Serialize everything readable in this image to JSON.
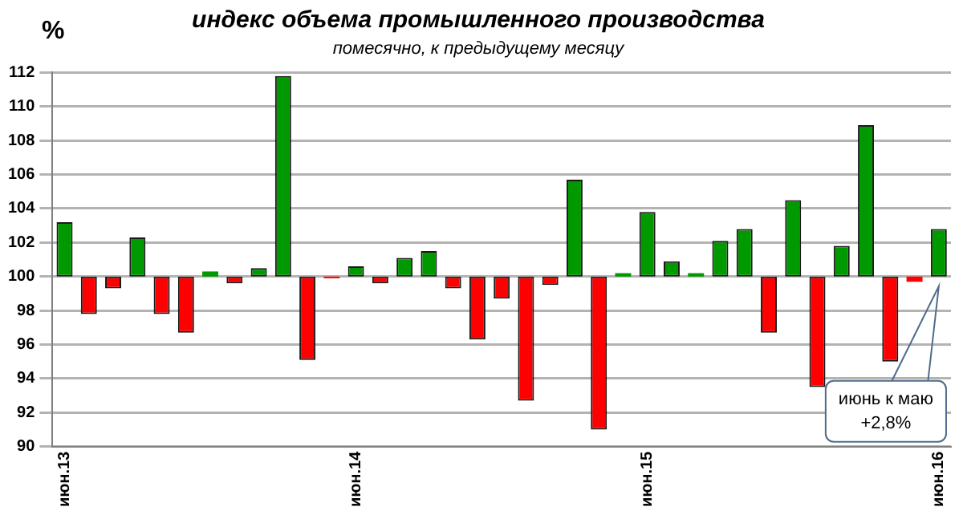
{
  "chart_data": {
    "type": "bar",
    "title": "индекс объема промышленного производства",
    "subtitle": "помесячно, к предыдущему месяцу",
    "ylabel": "%",
    "categories": [
      "июн.13",
      null,
      null,
      null,
      null,
      null,
      null,
      null,
      null,
      null,
      null,
      null,
      "июн.14",
      null,
      null,
      null,
      null,
      null,
      null,
      null,
      null,
      null,
      null,
      null,
      "июн.15",
      null,
      null,
      null,
      null,
      null,
      null,
      null,
      null,
      null,
      null,
      null,
      "июн.16"
    ],
    "base": [
      100,
      100,
      100,
      100,
      100,
      100,
      100,
      100,
      100,
      100,
      100,
      100,
      100,
      100,
      100,
      100,
      100,
      100,
      100,
      100,
      100,
      100,
      100,
      100,
      100,
      100,
      100,
      100,
      100,
      100,
      100,
      100,
      100,
      100,
      100,
      100,
      100
    ],
    "values": [
      3.2,
      -2.2,
      -0.7,
      2.3,
      -2.2,
      -3.3,
      0.3,
      -0.4,
      0.5,
      11.8,
      -4.9,
      -0.1,
      0.6,
      -0.4,
      1.1,
      1.5,
      -0.7,
      -3.7,
      -1.3,
      -7.3,
      -0.5,
      5.7,
      -9.0,
      0.2,
      3.8,
      0.9,
      0.2,
      2.1,
      2.8,
      -3.3,
      4.5,
      -6.5,
      1.8,
      8.9,
      -5.0,
      -0.3,
      2.8
    ],
    "colors": [
      "#009900",
      "#ff0000",
      "#ff0000",
      "#009900",
      "#ff0000",
      "#ff0000",
      "#009900",
      "#ff0000",
      "#009900",
      "#009900",
      "#ff0000",
      "#ff0000",
      "#009900",
      "#ff0000",
      "#009900",
      "#009900",
      "#ff0000",
      "#ff0000",
      "#ff0000",
      "#ff0000",
      "#ff0000",
      "#009900",
      "#ff0000",
      "#009900",
      "#009900",
      "#009900",
      "#009900",
      "#009900",
      "#009900",
      "#ff0000",
      "#009900",
      "#ff0000",
      "#009900",
      "#009900",
      "#ff0000",
      "#ff0000",
      "#009900"
    ],
    "ylim": [
      90,
      112
    ],
    "yticks": [
      90,
      92,
      94,
      96,
      98,
      100,
      102,
      104,
      106,
      108,
      110,
      112
    ],
    "grid": "y",
    "legend": false,
    "annotations": [
      "июнь к маю\n+2,8%"
    ]
  }
}
